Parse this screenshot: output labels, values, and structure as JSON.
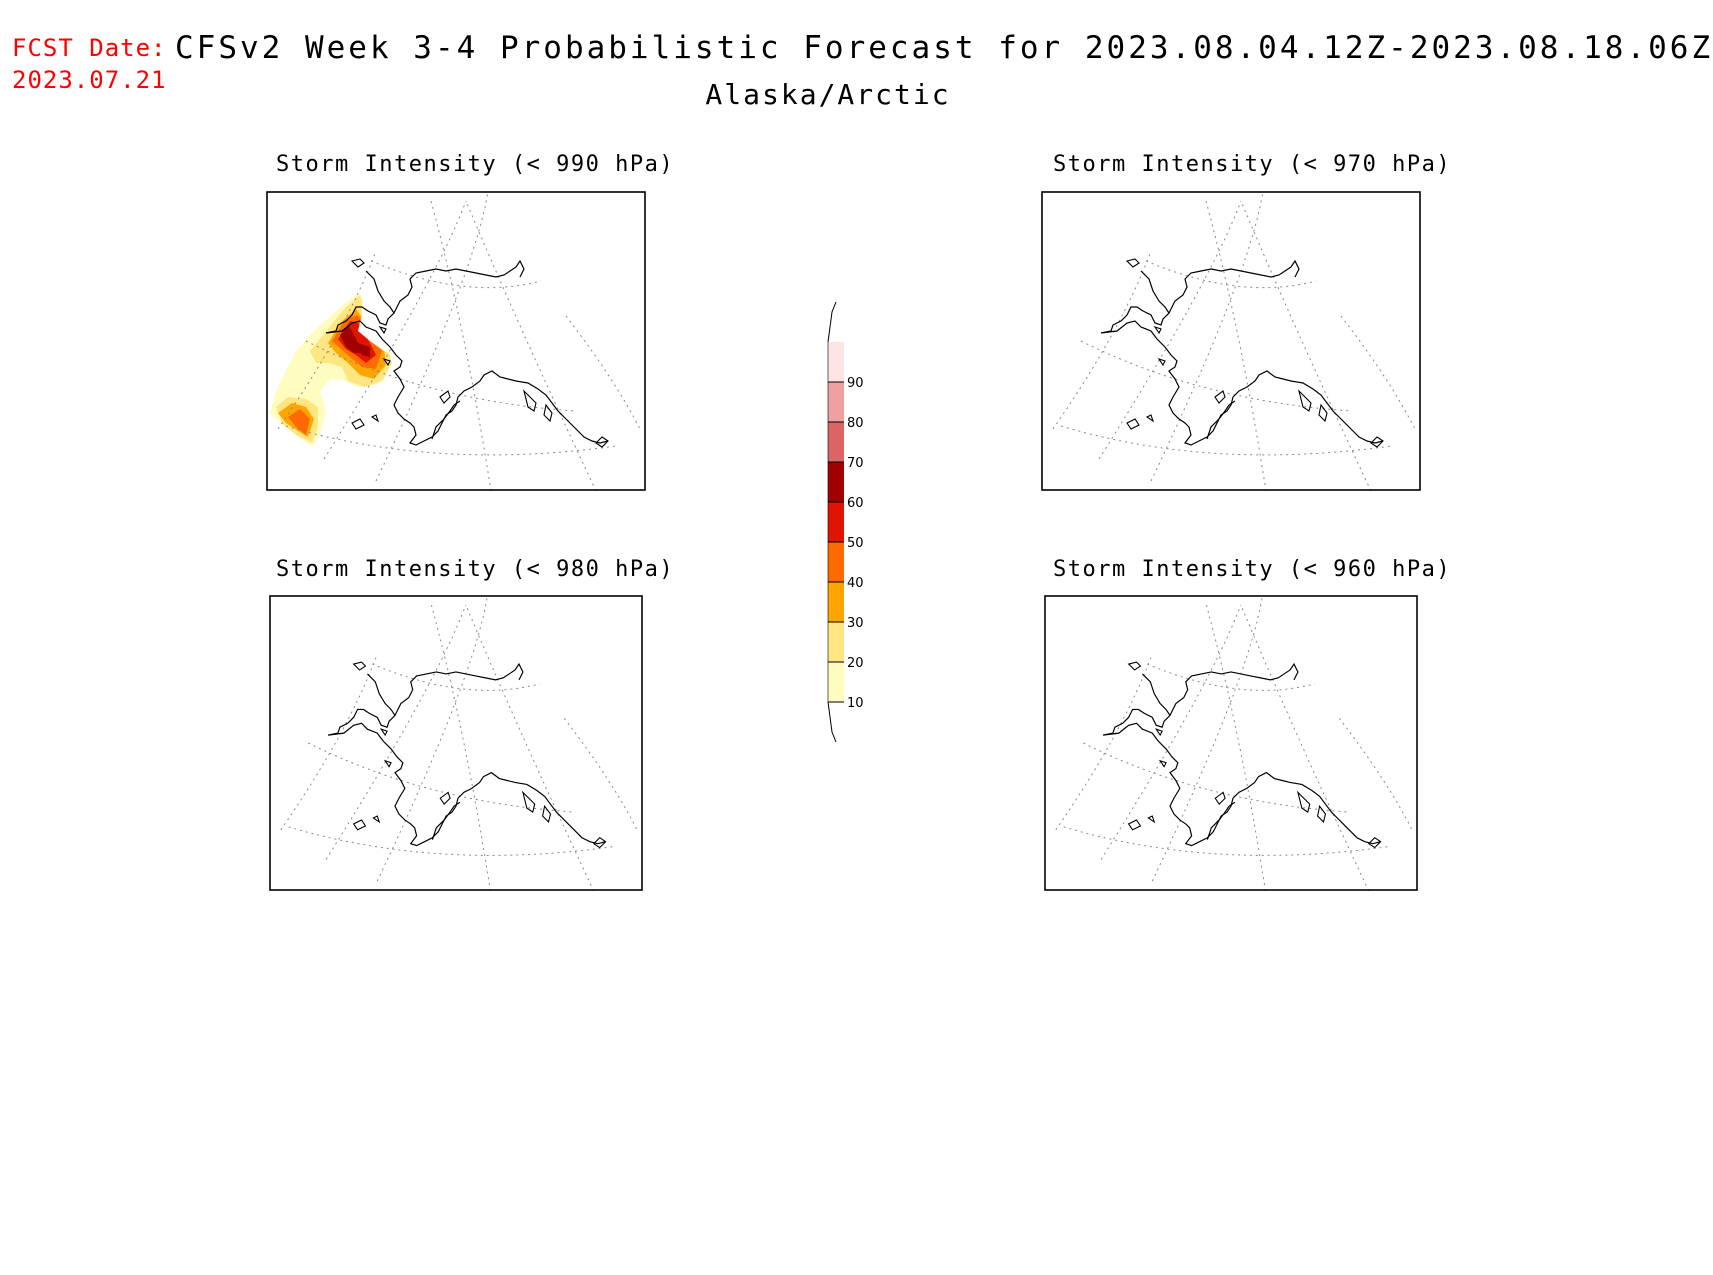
{
  "header": {
    "fcst_label": "FCST Date:",
    "fcst_date": "2023.07.21",
    "title": "CFSv2 Week 3-4 Probabilistic Forecast for 2023.08.04.12Z-2023.08.18.06Z",
    "region": "Alaska/Arctic"
  },
  "panels": [
    {
      "id": "p990",
      "title": "Storm Intensity (< 990 hPa)",
      "has_shading": true
    },
    {
      "id": "p970",
      "title": "Storm Intensity (< 970 hPa)",
      "has_shading": false
    },
    {
      "id": "p980",
      "title": "Storm Intensity (< 980 hPa)",
      "has_shading": false
    },
    {
      "id": "p960",
      "title": "Storm Intensity (< 960 hPa)",
      "has_shading": false
    }
  ],
  "colorbar": {
    "levels": [
      10,
      20,
      30,
      40,
      50,
      60,
      70,
      80,
      90
    ],
    "tick_labels": [
      "10",
      "20",
      "30",
      "40",
      "50",
      "60",
      "70",
      "80",
      "90"
    ],
    "colors": [
      "#fffcc0",
      "#ffe680",
      "#ffa500",
      "#ff6a00",
      "#e01400",
      "#a00000",
      "#dc6464",
      "#f0a0a0",
      "#fce4e4"
    ]
  }
}
